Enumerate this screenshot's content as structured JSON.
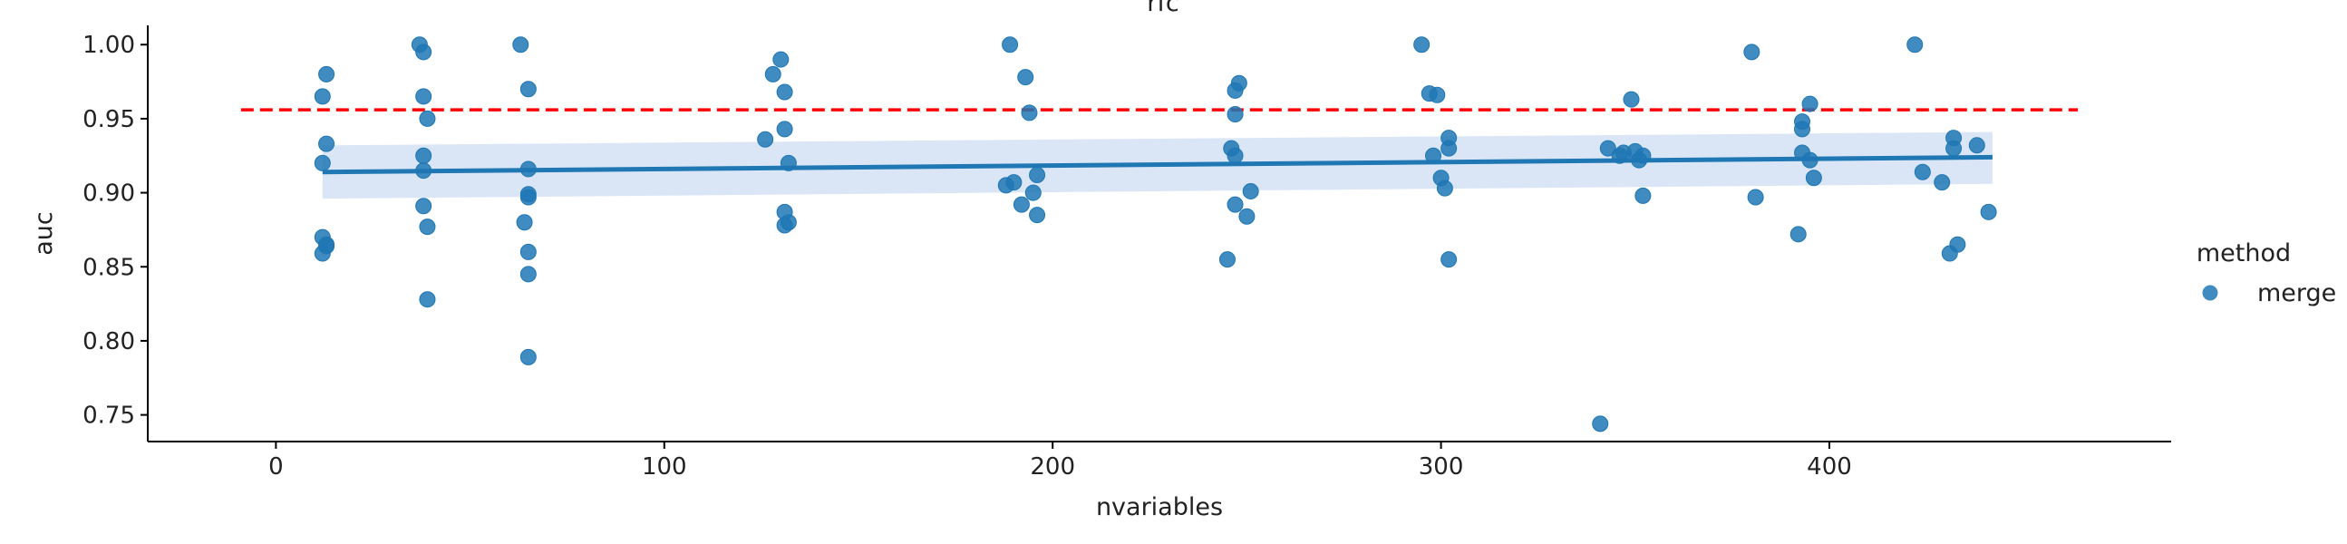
{
  "chart_data": {
    "type": "scatter",
    "title": "rfc",
    "xlabel": "nvariables",
    "ylabel": "auc",
    "xlim": [
      -33,
      488
    ],
    "ylim": [
      0.732,
      1.013
    ],
    "xticks": [
      0,
      100,
      200,
      300,
      400
    ],
    "yticks": [
      0.75,
      0.8,
      0.85,
      0.9,
      0.95,
      1.0
    ],
    "ytick_labels": [
      "0.75",
      "0.80",
      "0.85",
      "0.90",
      "0.95",
      "1.00"
    ],
    "grid": false,
    "legend": {
      "title": "method",
      "placement": "right",
      "entries": [
        "merge"
      ]
    },
    "colors": {
      "points": "#1f77b4",
      "fit_line": "#1f77b4",
      "ci_band": "#aec7e8",
      "reference_line": "#ff0000"
    },
    "reference_line": {
      "y": 0.956,
      "x_range": [
        -9,
        464
      ],
      "style": "dashed"
    },
    "regression": {
      "x_range": [
        12,
        442
      ],
      "y_start": 0.914,
      "y_end": 0.924,
      "ci_lower": [
        0.896,
        0.906
      ],
      "ci_upper": [
        0.932,
        0.941
      ]
    },
    "series": [
      {
        "name": "merge",
        "points": [
          [
            12,
            0.965
          ],
          [
            12,
            0.92
          ],
          [
            12,
            0.87
          ],
          [
            12,
            0.859
          ],
          [
            13,
            0.865
          ],
          [
            13,
            0.864
          ],
          [
            13,
            0.933
          ],
          [
            13,
            0.98
          ],
          [
            37,
            1.0
          ],
          [
            38,
            0.995
          ],
          [
            38,
            0.965
          ],
          [
            38,
            0.925
          ],
          [
            38,
            0.915
          ],
          [
            38,
            0.891
          ],
          [
            39,
            0.95
          ],
          [
            39,
            0.877
          ],
          [
            39,
            0.828
          ],
          [
            63,
            1.0
          ],
          [
            64,
            0.88
          ],
          [
            65,
            0.97
          ],
          [
            65,
            0.916
          ],
          [
            65,
            0.899
          ],
          [
            65,
            0.897
          ],
          [
            65,
            0.86
          ],
          [
            65,
            0.845
          ],
          [
            65,
            0.789
          ],
          [
            126,
            0.936
          ],
          [
            128,
            0.98
          ],
          [
            130,
            0.99
          ],
          [
            131,
            0.968
          ],
          [
            131,
            0.943
          ],
          [
            131,
            0.887
          ],
          [
            131,
            0.878
          ],
          [
            132,
            0.92
          ],
          [
            132,
            0.88
          ],
          [
            188,
            0.905
          ],
          [
            189,
            1.0
          ],
          [
            190,
            0.907
          ],
          [
            192,
            0.892
          ],
          [
            193,
            0.978
          ],
          [
            194,
            0.954
          ],
          [
            195,
            0.9
          ],
          [
            196,
            0.912
          ],
          [
            196,
            0.885
          ],
          [
            245,
            0.855
          ],
          [
            246,
            0.93
          ],
          [
            247,
            0.969
          ],
          [
            247,
            0.953
          ],
          [
            247,
            0.925
          ],
          [
            247,
            0.892
          ],
          [
            248,
            0.974
          ],
          [
            250,
            0.884
          ],
          [
            251,
            0.901
          ],
          [
            295,
            1.0
          ],
          [
            297,
            0.967
          ],
          [
            298,
            0.925
          ],
          [
            299,
            0.966
          ],
          [
            300,
            0.91
          ],
          [
            301,
            0.903
          ],
          [
            302,
            0.937
          ],
          [
            302,
            0.93
          ],
          [
            302,
            0.855
          ],
          [
            341,
            0.744
          ],
          [
            343,
            0.93
          ],
          [
            346,
            0.925
          ],
          [
            347,
            0.927
          ],
          [
            349,
            0.963
          ],
          [
            350,
            0.928
          ],
          [
            351,
            0.922
          ],
          [
            352,
            0.925
          ],
          [
            352,
            0.898
          ],
          [
            380,
            0.995
          ],
          [
            381,
            0.897
          ],
          [
            392,
            0.872
          ],
          [
            393,
            0.948
          ],
          [
            393,
            0.943
          ],
          [
            393,
            0.927
          ],
          [
            395,
            0.96
          ],
          [
            395,
            0.922
          ],
          [
            396,
            0.91
          ],
          [
            422,
            1.0
          ],
          [
            424,
            0.914
          ],
          [
            429,
            0.907
          ],
          [
            431,
            0.859
          ],
          [
            432,
            0.937
          ],
          [
            432,
            0.93
          ],
          [
            433,
            0.865
          ],
          [
            438,
            0.932
          ],
          [
            441,
            0.887
          ]
        ]
      }
    ]
  }
}
